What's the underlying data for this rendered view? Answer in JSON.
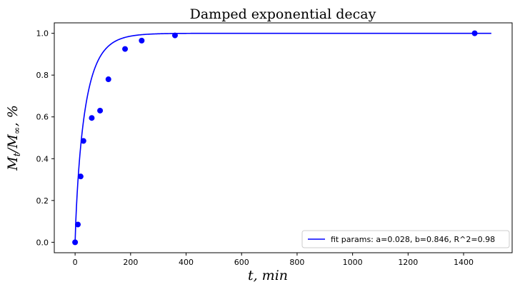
{
  "chart_data": {
    "type": "scatter",
    "title": "Damped exponential decay",
    "xlabel": "t, min",
    "ylabel": "M_t/M_∞, %",
    "xlim": [
      -75,
      1575
    ],
    "ylim": [
      -0.05,
      1.05
    ],
    "xticks": [
      0,
      200,
      400,
      600,
      800,
      1000,
      1200,
      1400
    ],
    "xtick_labels": [
      "0",
      "200",
      "400",
      "600",
      "800",
      "1000",
      "1200",
      "1400"
    ],
    "yticks": [
      0.0,
      0.2,
      0.4,
      0.6,
      0.8,
      1.0
    ],
    "ytick_labels": [
      "0.0",
      "0.2",
      "0.4",
      "0.6",
      "0.8",
      "1.0"
    ],
    "grid": false,
    "legend_position": "lower-right",
    "series": [
      {
        "kind": "points",
        "color": "#0000ff",
        "x": [
          0,
          10,
          20,
          30,
          60,
          90,
          120,
          180,
          240,
          360,
          1440
        ],
        "y": [
          0.0,
          0.085,
          0.315,
          0.485,
          0.595,
          0.63,
          0.78,
          0.925,
          0.965,
          0.99,
          1.0
        ]
      },
      {
        "kind": "line",
        "name": "fit params: a=0.028, b=0.846, R^2=0.98",
        "color": "#0000ff",
        "function": "1 - exp(-(a*t)^b)",
        "a": 0.028,
        "b": 0.846,
        "x_range": [
          0,
          1500
        ]
      }
    ]
  }
}
